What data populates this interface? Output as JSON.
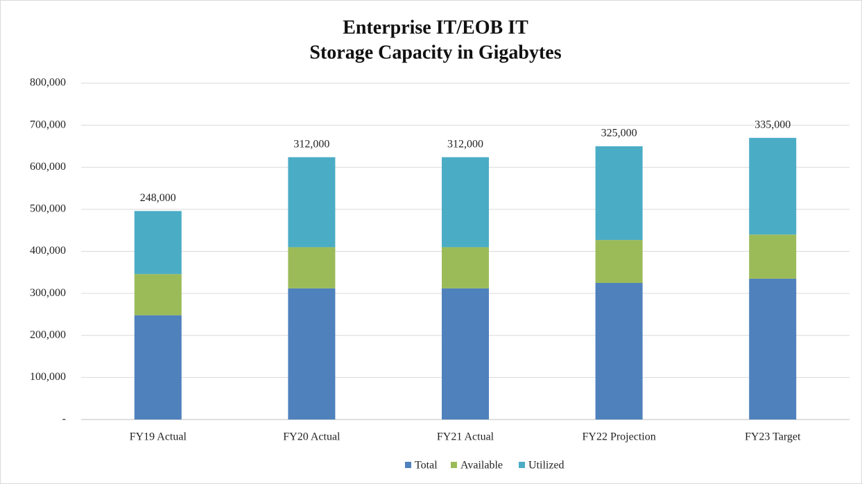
{
  "chart_data": {
    "type": "stacked_bar",
    "title": "Enterprise IT/EOB IT",
    "subtitle": "Storage Capacity in Gigabytes",
    "categories": [
      "FY19 Actual",
      "FY20 Actual",
      "FY21 Actual",
      "FY22 Projection",
      "FY23 Target"
    ],
    "series": [
      {
        "name": "Total",
        "color": "#4f81bd",
        "values": [
          248000,
          312000,
          312000,
          325000,
          335000
        ],
        "value_labels": [
          "248,000",
          "312,000",
          "312,000",
          "325,000",
          "335,000"
        ]
      },
      {
        "name": "Available",
        "color": "#9bbb59",
        "values": [
          98000,
          98000,
          98000,
          102000,
          105000
        ]
      },
      {
        "name": "Utilized",
        "color": "#4bacc6",
        "values": [
          150000,
          214000,
          214000,
          223000,
          230000
        ]
      }
    ],
    "ylim": [
      0,
      800000
    ],
    "yticks": [
      {
        "value": 0,
        "label": "-"
      },
      {
        "value": 100000,
        "label": "100,000"
      },
      {
        "value": 200000,
        "label": "200,000"
      },
      {
        "value": 300000,
        "label": "300,000"
      },
      {
        "value": 400000,
        "label": "400,000"
      },
      {
        "value": 500000,
        "label": "500,000"
      },
      {
        "value": 600000,
        "label": "600,000"
      },
      {
        "value": 700000,
        "label": "700,000"
      },
      {
        "value": 800000,
        "label": "800,000"
      }
    ],
    "grid": true,
    "legend": "bottom"
  }
}
